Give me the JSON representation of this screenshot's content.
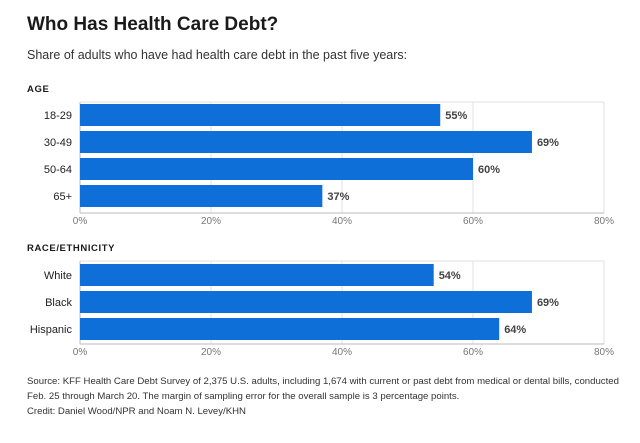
{
  "title": "Who Has Health Care Debt?",
  "subtitle": "Share of adults who have had health care debt in the past five years:",
  "colors": {
    "bar": "#0e6fd8",
    "grid": "#e0e0e0",
    "axis": "#bbbbbb",
    "text": "#222222",
    "tick": "#777777"
  },
  "chart_data": [
    {
      "type": "bar",
      "orientation": "horizontal",
      "title": "AGE",
      "categories": [
        "18-29",
        "30-49",
        "50-64",
        "65+"
      ],
      "values": [
        55,
        69,
        60,
        37
      ],
      "value_labels": [
        "55%",
        "69%",
        "60%",
        "37%"
      ],
      "xlim": [
        0,
        80
      ],
      "ticks": [
        0,
        20,
        40,
        60,
        80
      ],
      "tick_labels": [
        "0%",
        "20%",
        "40%",
        "60%",
        "80%"
      ],
      "grid": true
    },
    {
      "type": "bar",
      "orientation": "horizontal",
      "title": "RACE/ETHNICITY",
      "categories": [
        "White",
        "Black",
        "Hispanic"
      ],
      "values": [
        54,
        69,
        64
      ],
      "value_labels": [
        "54%",
        "69%",
        "64%"
      ],
      "xlim": [
        0,
        80
      ],
      "ticks": [
        0,
        20,
        40,
        60,
        80
      ],
      "tick_labels": [
        "0%",
        "20%",
        "40%",
        "60%",
        "80%"
      ],
      "grid": true
    }
  ],
  "source": "Source: KFF Health Care Debt Survey of 2,375 U.S. adults, including 1,674 with current or past debt from medical or dental bills, conducted Feb. 25 through March 20. The margin of sampling error for the overall sample is 3 percentage points.",
  "credit": "Credit: Daniel Wood/NPR and Noam N. Levey/KHN"
}
